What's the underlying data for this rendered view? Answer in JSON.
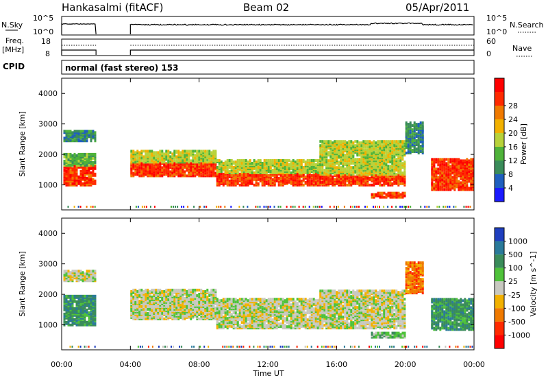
{
  "header": {
    "station": "Hankasalmi (fitACF)",
    "beam": "Beam 02",
    "date": "05/Apr/2011"
  },
  "nsky_panel": {
    "left_label": "N.Sky",
    "left_ticks": [
      "10^5",
      "10^0"
    ],
    "right_ticks": [
      "10^5",
      "10^0"
    ],
    "right_label": "N.Search"
  },
  "freq_panel": {
    "left_label_line1": "Freq.",
    "left_label_line2": "[MHz]",
    "left_ticks": [
      "18",
      "8"
    ],
    "right_ticks": [
      "60",
      "0"
    ],
    "right_label": "Nave"
  },
  "cpid": {
    "label": "CPID",
    "value": "normal (fast stereo) 153"
  },
  "chart_data": [
    {
      "type": "heatmap",
      "name": "power",
      "ylabel": "Slant Range [km]",
      "xlabel": "Time UT",
      "xlim": [
        0,
        24
      ],
      "ylim": [
        180,
        4500
      ],
      "x_ticks": [
        "00:00",
        "04:00",
        "08:00",
        "12:00",
        "16:00",
        "20:00",
        "00:00"
      ],
      "y_ticks": [
        "1000",
        "2000",
        "3000",
        "4000"
      ],
      "colorbar": {
        "label": "Power [dB]",
        "ticks": [
          "4",
          "8",
          "12",
          "16",
          "20",
          "24",
          "28"
        ],
        "colors": [
          "#1a1aff",
          "#1f5fbf",
          "#3a8c5a",
          "#4fb33a",
          "#b8d23a",
          "#f2b100",
          "#f07a00",
          "#ff2a00",
          "#ff0000"
        ]
      },
      "data_gap_hours": [
        [
          2.0,
          4.0
        ]
      ],
      "bands": [
        {
          "t0": 0.1,
          "t1": 2.0,
          "r0": 950,
          "r1": 1600,
          "level": 7
        },
        {
          "t0": 0.1,
          "t1": 2.0,
          "r0": 1600,
          "r1": 2000,
          "level": 3
        },
        {
          "t0": 0.1,
          "t1": 2.0,
          "r0": 2400,
          "r1": 2750,
          "level": 2
        },
        {
          "t0": 4.0,
          "t1": 9.0,
          "r0": 1250,
          "r1": 1700,
          "level": 7
        },
        {
          "t0": 4.0,
          "t1": 9.0,
          "r0": 1700,
          "r1": 2100,
          "level": 4
        },
        {
          "t0": 9.0,
          "t1": 15.0,
          "r0": 950,
          "r1": 1350,
          "level": 7
        },
        {
          "t0": 9.0,
          "t1": 15.0,
          "r0": 1350,
          "r1": 1800,
          "level": 4
        },
        {
          "t0": 15.0,
          "t1": 20.0,
          "r0": 950,
          "r1": 1300,
          "level": 7
        },
        {
          "t0": 15.0,
          "t1": 20.0,
          "r0": 1300,
          "r1": 2400,
          "level": 4
        },
        {
          "t0": 18.0,
          "t1": 20.0,
          "r0": 550,
          "r1": 700,
          "level": 7
        },
        {
          "t0": 21.5,
          "t1": 24.0,
          "r0": 800,
          "r1": 1800,
          "level": 7
        },
        {
          "t0": 20.0,
          "t1": 21.0,
          "r0": 2000,
          "r1": 3000,
          "level": 2
        }
      ]
    },
    {
      "type": "heatmap",
      "name": "velocity",
      "ylabel": "Slant Range [km]",
      "xlabel": "Time UT",
      "xlim": [
        0,
        24
      ],
      "ylim": [
        180,
        4500
      ],
      "x_ticks": [
        "00:00",
        "04:00",
        "08:00",
        "12:00",
        "16:00",
        "20:00",
        "00:00"
      ],
      "y_ticks": [
        "1000",
        "2000",
        "3000",
        "4000"
      ],
      "colorbar": {
        "label": "Velocity [m s^-1]",
        "ticks": [
          "1000",
          "500",
          "100",
          "25",
          "-25",
          "-100",
          "-500",
          "-1000"
        ],
        "colors": [
          "#1f3fbf",
          "#2a7a9a",
          "#3a8c5a",
          "#4fc23a",
          "#c8c8c0",
          "#f2b100",
          "#f07a00",
          "#ff2a00",
          "#ff0000"
        ]
      },
      "data_gap_hours": [
        [
          2.0,
          4.0
        ]
      ],
      "bands": [
        {
          "t0": 0.1,
          "t1": 2.0,
          "r0": 950,
          "r1": 1900,
          "level": 2
        },
        {
          "t0": 0.1,
          "t1": 2.0,
          "r0": 2400,
          "r1": 2750,
          "level": 4
        },
        {
          "t0": 4.0,
          "t1": 9.0,
          "r0": 1150,
          "r1": 2100,
          "level": 4
        },
        {
          "t0": 9.0,
          "t1": 15.0,
          "r0": 850,
          "r1": 1800,
          "level": 4
        },
        {
          "t0": 15.0,
          "t1": 20.0,
          "r0": 850,
          "r1": 2100,
          "level": 4
        },
        {
          "t0": 18.0,
          "t1": 20.0,
          "r0": 550,
          "r1": 700,
          "level": 3
        },
        {
          "t0": 21.5,
          "t1": 24.0,
          "r0": 800,
          "r1": 1800,
          "level": 2
        },
        {
          "t0": 20.0,
          "t1": 21.0,
          "r0": 2000,
          "r1": 3000,
          "level": 6
        }
      ]
    }
  ]
}
